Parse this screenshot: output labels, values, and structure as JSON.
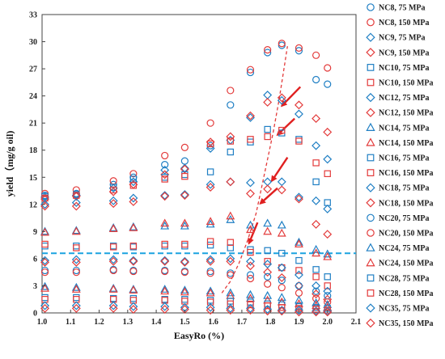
{
  "chart_data": {
    "type": "scatter",
    "xlabel": "EasyRo (%)",
    "ylabel": "yield（mg/g oil)",
    "xlim": [
      1.0,
      2.1
    ],
    "ylim": [
      0,
      33
    ],
    "xticks": [
      "1.0",
      "1.1",
      "1.2",
      "1.3",
      "1.4",
      "1.5",
      "1.6",
      "1.7",
      "1.8",
      "1.9",
      "2.0",
      "2.1"
    ],
    "yticks": [
      "0",
      "3",
      "6",
      "9",
      "12",
      "15",
      "18",
      "21",
      "24",
      "27",
      "30",
      "33"
    ],
    "x": [
      1.01,
      1.12,
      1.25,
      1.32,
      1.43,
      1.5,
      1.59,
      1.66,
      1.73,
      1.79,
      1.84,
      1.9,
      1.96,
      2.0
    ],
    "colors": {
      "blue": "#1f7fc4",
      "red": "#e33b3b",
      "dashed_horizontal": "#1aa3e0",
      "dashed_curve": "#e33b3b",
      "arrows": "#e02020"
    },
    "horizontal_line_y": 6.6,
    "legend_position": "right",
    "series": [
      {
        "name": "NC8, 75 MPa",
        "marker": "circle",
        "color": "blue",
        "values": [
          13.0,
          13.2,
          14.2,
          15.0,
          16.4,
          16.8,
          18.5,
          23.0,
          26.6,
          28.8,
          29.6,
          29.0,
          25.8,
          25.3
        ]
      },
      {
        "name": "NC8, 150 MPa",
        "marker": "circle",
        "color": "red",
        "values": [
          13.2,
          13.6,
          14.6,
          15.4,
          17.4,
          18.3,
          21.0,
          24.6,
          26.9,
          29.1,
          29.8,
          29.3,
          28.5,
          27.1
        ]
      },
      {
        "name": "NC9, 75 MPa",
        "marker": "diamond",
        "color": "blue",
        "values": [
          12.8,
          13.0,
          13.8,
          14.5,
          15.8,
          16.0,
          18.2,
          19.1,
          21.6,
          24.1,
          23.5,
          22.0,
          18.5,
          17.0
        ]
      },
      {
        "name": "NC9, 150 MPa",
        "marker": "diamond",
        "color": "red",
        "values": [
          12.6,
          12.9,
          13.4,
          14.2,
          15.3,
          15.9,
          18.9,
          19.5,
          21.8,
          23.3,
          23.8,
          23.0,
          21.5,
          20.0
        ]
      },
      {
        "name": "NC10, 75 MPa",
        "marker": "square",
        "color": "blue",
        "values": [
          12.9,
          13.1,
          13.9,
          14.8,
          15.0,
          15.3,
          15.6,
          17.8,
          18.9,
          20.3,
          19.9,
          19.2,
          14.5,
          12.2
        ]
      },
      {
        "name": "NC10, 150 MPa",
        "marker": "square",
        "color": "red",
        "values": [
          12.7,
          13.0,
          13.6,
          14.1,
          14.8,
          15.1,
          18.7,
          19.0,
          19.2,
          19.5,
          20.2,
          19.0,
          16.6,
          15.4
        ]
      },
      {
        "name": "NC12, 75 MPa",
        "marker": "diamond",
        "color": "blue",
        "values": [
          12.0,
          12.2,
          12.4,
          12.7,
          13.0,
          13.1,
          14.2,
          14.5,
          14.4,
          14.5,
          14.5,
          12.8,
          12.4,
          11.5
        ]
      },
      {
        "name": "NC12, 150 MPa",
        "marker": "diamond",
        "color": "red",
        "values": [
          11.8,
          11.8,
          12.1,
          12.3,
          12.9,
          13.0,
          13.9,
          14.5,
          13.2,
          13.7,
          13.6,
          12.6,
          9.8,
          8.7
        ]
      },
      {
        "name": "NC14, 75 MPa",
        "marker": "triangle",
        "color": "blue",
        "values": [
          9.0,
          9.1,
          9.4,
          9.5,
          9.6,
          9.6,
          9.8,
          10.3,
          9.7,
          9.9,
          9.7,
          7.8,
          7.0,
          6.5
        ]
      },
      {
        "name": "NC14, 150 MPa",
        "marker": "triangle",
        "color": "red",
        "values": [
          8.9,
          9.0,
          9.3,
          9.4,
          9.9,
          9.9,
          10.1,
          10.7,
          9.2,
          9.0,
          8.8,
          7.6,
          6.6,
          6.2
        ]
      },
      {
        "name": "NC16, 75 MPa",
        "marker": "square",
        "color": "blue",
        "values": [
          7.4,
          7.4,
          7.4,
          7.3,
          7.4,
          7.4,
          7.5,
          7.2,
          7.0,
          6.9,
          6.6,
          5.8,
          4.8,
          4.0
        ]
      },
      {
        "name": "NC16, 150 MPa",
        "marker": "square",
        "color": "red",
        "values": [
          7.6,
          7.2,
          7.3,
          7.4,
          7.6,
          7.6,
          7.9,
          7.8,
          6.7,
          5.7,
          5.0,
          4.7,
          4.0,
          3.0
        ]
      },
      {
        "name": "NC18, 75 MPa",
        "marker": "diamond",
        "color": "blue",
        "values": [
          5.8,
          5.9,
          5.9,
          5.8,
          5.8,
          5.7,
          5.9,
          6.0,
          5.7,
          5.4,
          5.0,
          4.2,
          3.0,
          2.4
        ]
      },
      {
        "name": "NC18, 150 MPa",
        "marker": "diamond",
        "color": "red",
        "values": [
          5.6,
          5.6,
          5.7,
          5.7,
          5.7,
          5.6,
          5.7,
          5.7,
          5.2,
          4.5,
          3.9,
          3.0,
          2.1,
          1.5
        ]
      },
      {
        "name": "NC20, 75 MPa",
        "marker": "circle",
        "color": "blue",
        "values": [
          4.7,
          4.7,
          4.8,
          4.7,
          4.7,
          4.6,
          4.6,
          4.4,
          4.2,
          4.0,
          3.6,
          3.0,
          2.4,
          1.9
        ]
      },
      {
        "name": "NC20, 150 MPa",
        "marker": "circle",
        "color": "red",
        "values": [
          4.5,
          4.5,
          4.7,
          4.6,
          4.6,
          4.5,
          4.4,
          4.2,
          3.8,
          3.2,
          2.8,
          2.2,
          1.6,
          1.2
        ]
      },
      {
        "name": "NC24, 75 MPa",
        "marker": "triangle",
        "color": "blue",
        "values": [
          2.9,
          2.8,
          2.7,
          2.6,
          2.6,
          2.5,
          2.4,
          2.2,
          2.0,
          1.9,
          1.7,
          1.4,
          1.1,
          0.9
        ]
      },
      {
        "name": "NC24, 150 MPa",
        "marker": "triangle",
        "color": "red",
        "values": [
          2.7,
          2.6,
          2.6,
          2.5,
          2.4,
          2.3,
          2.2,
          1.9,
          1.6,
          1.4,
          1.2,
          1.0,
          0.8,
          0.6
        ]
      },
      {
        "name": "NC28, 75 MPa",
        "marker": "square",
        "color": "blue",
        "values": [
          1.7,
          1.7,
          1.6,
          1.6,
          1.5,
          1.5,
          1.4,
          1.3,
          1.2,
          1.0,
          0.9,
          0.7,
          0.6,
          0.5
        ]
      },
      {
        "name": "NC28, 150 MPa",
        "marker": "square",
        "color": "red",
        "values": [
          1.5,
          1.5,
          1.5,
          1.4,
          1.4,
          1.3,
          1.2,
          1.0,
          0.9,
          0.8,
          0.6,
          0.5,
          0.4,
          0.3
        ]
      },
      {
        "name": "NC35, 75 MPa",
        "marker": "diamond",
        "color": "blue",
        "values": [
          0.8,
          0.8,
          0.8,
          0.7,
          0.7,
          0.6,
          0.6,
          0.5,
          0.5,
          0.4,
          0.3,
          0.3,
          0.2,
          0.2
        ]
      },
      {
        "name": "NC35, 150 MPa",
        "marker": "diamond",
        "color": "red",
        "values": [
          0.5,
          0.5,
          0.5,
          0.4,
          0.4,
          0.4,
          0.3,
          0.3,
          0.3,
          0.2,
          0.2,
          0.1,
          0.1,
          0.1
        ]
      }
    ],
    "trend_curve": {
      "x": [
        1.63,
        1.66,
        1.69,
        1.72,
        1.75,
        1.77,
        1.79,
        1.81,
        1.83,
        1.845,
        1.86
      ],
      "y": [
        2.2,
        3.5,
        5.5,
        8.0,
        11.0,
        14.0,
        17.0,
        20.0,
        23.5,
        26.5,
        29.5
      ]
    },
    "arrows": [
      {
        "from": [
          1.905,
          25.0
        ],
        "to": [
          1.84,
          22.9
        ]
      },
      {
        "from": [
          1.885,
          21.5
        ],
        "to": [
          1.825,
          19.7
        ]
      },
      {
        "from": [
          1.86,
          17.2
        ],
        "to": [
          1.805,
          14.6
        ]
      },
      {
        "from": [
          1.825,
          13.8
        ],
        "to": [
          1.765,
          12.1
        ]
      },
      {
        "from": [
          1.755,
          10.0
        ],
        "to": [
          1.725,
          7.7
        ]
      }
    ]
  }
}
